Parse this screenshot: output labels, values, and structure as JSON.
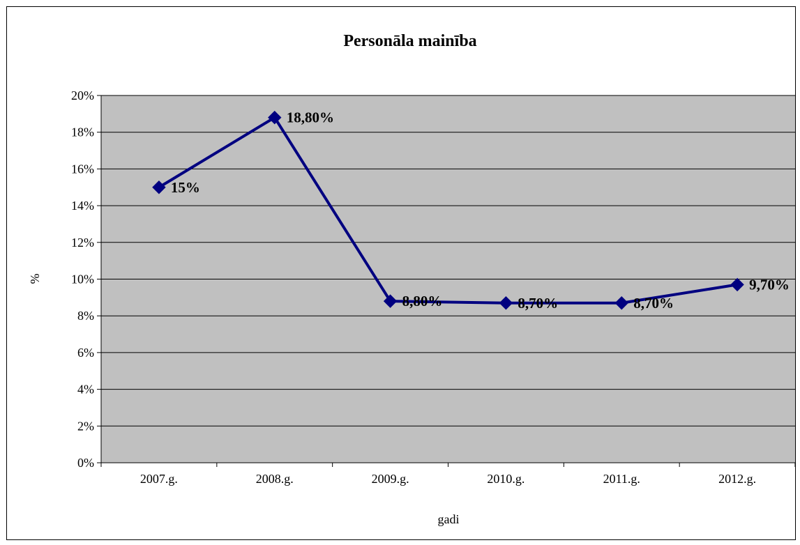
{
  "chart_data": {
    "type": "line",
    "title": "Personāla mainība",
    "xlabel": "gadi",
    "ylabel": "%",
    "categories": [
      "2007.g.",
      "2008.g.",
      "2009.g.",
      "2010.g.",
      "2011.g.",
      "2012.g."
    ],
    "series": [
      {
        "values": [
          15,
          18.8,
          8.8,
          8.7,
          8.7,
          9.7
        ],
        "data_labels": [
          "15%",
          "18,80%",
          "8,80%",
          "8,70%",
          "8,70%",
          "9,70%"
        ]
      }
    ],
    "ylim": [
      0,
      20
    ],
    "yticks": [
      0,
      2,
      4,
      6,
      8,
      10,
      12,
      14,
      16,
      18,
      20
    ],
    "ytick_labels": [
      "0%",
      "2%",
      "4%",
      "6%",
      "8%",
      "10%",
      "12%",
      "14%",
      "16%",
      "18%",
      "20%"
    ],
    "grid": true,
    "legend": "none",
    "colors": {
      "plot_background": "#c0c0c0",
      "line": "#000080",
      "marker": "#000080",
      "gridline": "#000000"
    }
  }
}
